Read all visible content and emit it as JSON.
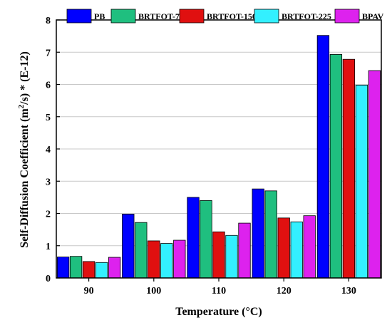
{
  "chart_data": {
    "type": "bar",
    "title": "",
    "xlabel": "Temperature (°C)",
    "ylabel_parts": [
      "Self-Diffusion Coefficient (m",
      "2",
      "/s) * (E-12)"
    ],
    "categories": [
      "90",
      "100",
      "110",
      "120",
      "130"
    ],
    "ylim": [
      0,
      8
    ],
    "yticks": [
      "0",
      "1",
      "2",
      "3",
      "4",
      "5",
      "6",
      "7",
      "8"
    ],
    "grid": "horizontal",
    "legend_position": "top",
    "series": [
      {
        "name": "PB",
        "color": "#0000ff",
        "values": [
          0.65,
          1.98,
          2.5,
          2.76,
          7.52
        ]
      },
      {
        "name": "BRTFOT-75",
        "color": "#1fbf7f",
        "values": [
          0.67,
          1.72,
          2.4,
          2.7,
          6.93
        ]
      },
      {
        "name": "BRTFOT-150",
        "color": "#e01010",
        "values": [
          0.51,
          1.15,
          1.43,
          1.86,
          6.78
        ]
      },
      {
        "name": "BRTFOT-225",
        "color": "#33f0ff",
        "values": [
          0.48,
          1.07,
          1.32,
          1.74,
          5.98
        ]
      },
      {
        "name": "BPAV",
        "color": "#dd22ee",
        "values": [
          0.64,
          1.17,
          1.7,
          1.93,
          6.43
        ]
      }
    ]
  }
}
